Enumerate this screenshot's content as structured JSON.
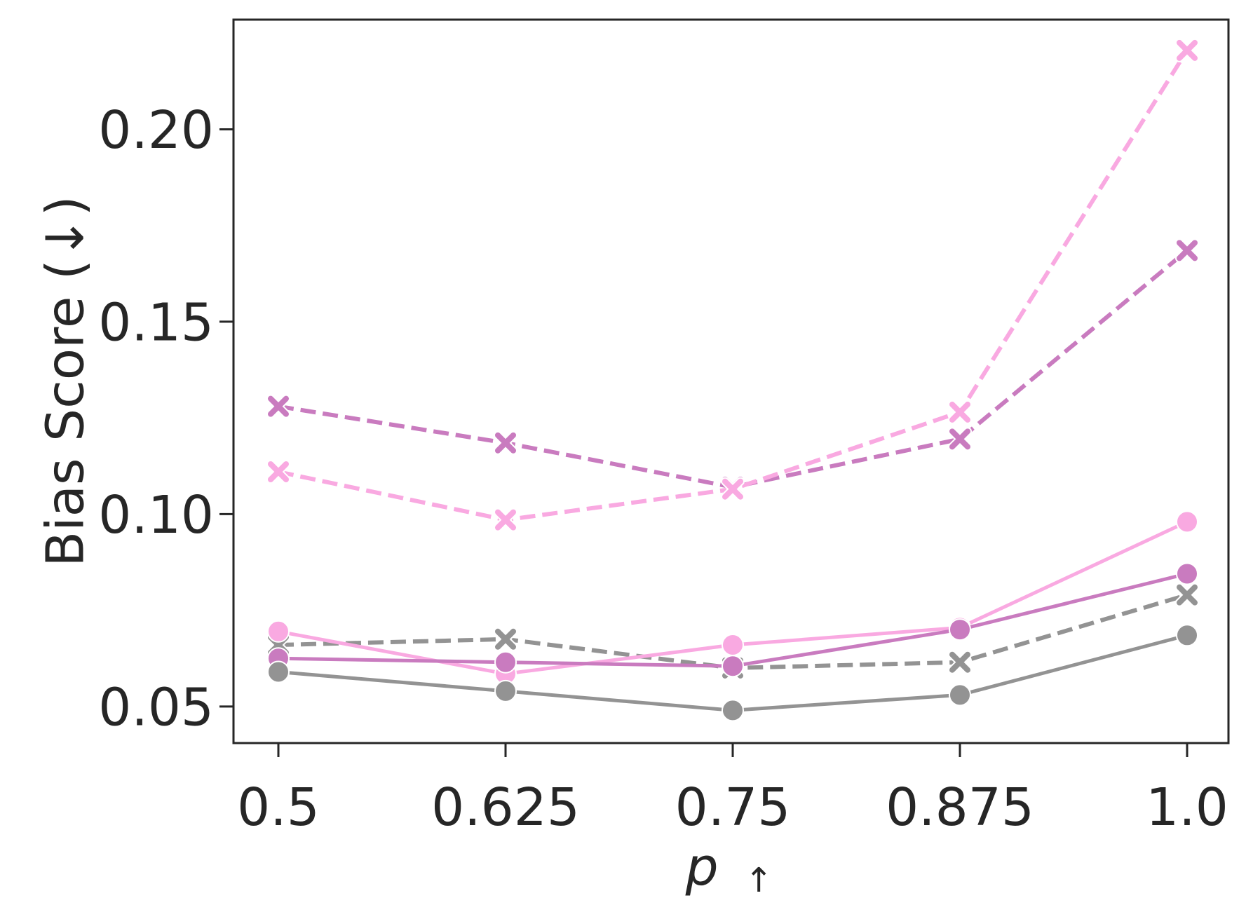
{
  "chart_data": {
    "type": "line",
    "title": "",
    "xlabel": "p",
    "xlabel_sub": "↑",
    "ylabel": "Bias Score (↓)",
    "x": [
      0.5,
      0.625,
      0.75,
      0.875,
      1.0
    ],
    "x_tick_labels": [
      "0.5",
      "0.625",
      "0.75",
      "0.875",
      "1.0"
    ],
    "y_ticks": [
      0.05,
      0.1,
      0.15,
      0.2
    ],
    "y_tick_labels": [
      "0.05",
      "0.10",
      "0.15",
      "0.20"
    ],
    "ylim": [
      0.0405,
      0.2285
    ],
    "grid": false,
    "legend": false,
    "series": [
      {
        "color": "#c97bbf",
        "marker": "x",
        "linestyle": "dashed",
        "values": [
          0.128,
          0.1185,
          0.107,
          0.1195,
          0.1685
        ]
      },
      {
        "color": "#f9a9e1",
        "marker": "x",
        "linestyle": "dashed",
        "values": [
          0.111,
          0.0985,
          0.1065,
          0.1265,
          0.2205
        ]
      },
      {
        "color": "#939393",
        "marker": "x",
        "linestyle": "dashed",
        "values": [
          0.066,
          0.0675,
          0.06,
          0.0615,
          0.079
        ]
      },
      {
        "color": "#f9a9e1",
        "marker": "o",
        "linestyle": "solid",
        "values": [
          0.0695,
          0.0585,
          0.066,
          0.0705,
          0.098
        ]
      },
      {
        "color": "#c97bbf",
        "marker": "o",
        "linestyle": "solid",
        "values": [
          0.0625,
          0.0615,
          0.0605,
          0.07,
          0.0845
        ]
      },
      {
        "color": "#939393",
        "marker": "o",
        "linestyle": "solid",
        "values": [
          0.059,
          0.054,
          0.049,
          0.053,
          0.0685
        ]
      }
    ]
  }
}
